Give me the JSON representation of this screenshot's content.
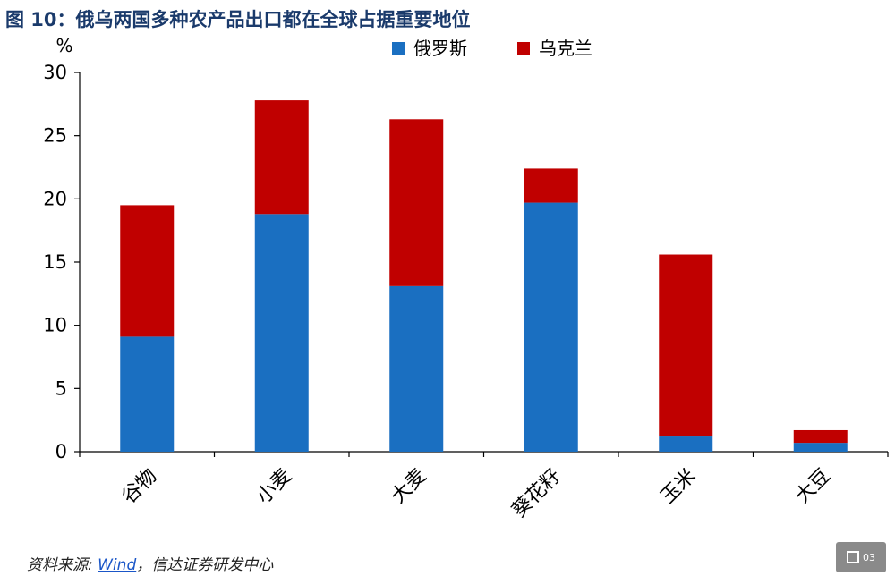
{
  "title": "图 10：俄乌两国多种农产品出口都在全球占据重要地位",
  "source": {
    "prefix": "资料来源: ",
    "link": "Wind",
    "suffix": "，信达证券研发中心"
  },
  "badge": {
    "icon": "qr-square-icon",
    "label": "03"
  },
  "colors": {
    "russia": "#1a6fc1",
    "ukraine": "#c00000",
    "title": "#1a3a6b"
  },
  "chart_data": {
    "type": "bar",
    "stacked": true,
    "categories": [
      "谷物",
      "小麦",
      "大麦",
      "葵花籽",
      "玉米",
      "大豆"
    ],
    "series": [
      {
        "name": "俄罗斯",
        "values": [
          9.1,
          18.8,
          13.1,
          19.7,
          1.2,
          0.7
        ]
      },
      {
        "name": "乌克兰",
        "values": [
          10.4,
          9.0,
          13.2,
          2.7,
          14.4,
          1.0
        ]
      }
    ],
    "ylabel": "%",
    "ylim": [
      0,
      30
    ],
    "yticks": [
      0,
      5,
      10,
      15,
      20,
      25,
      30
    ],
    "legend": "top-center",
    "grid": false
  }
}
